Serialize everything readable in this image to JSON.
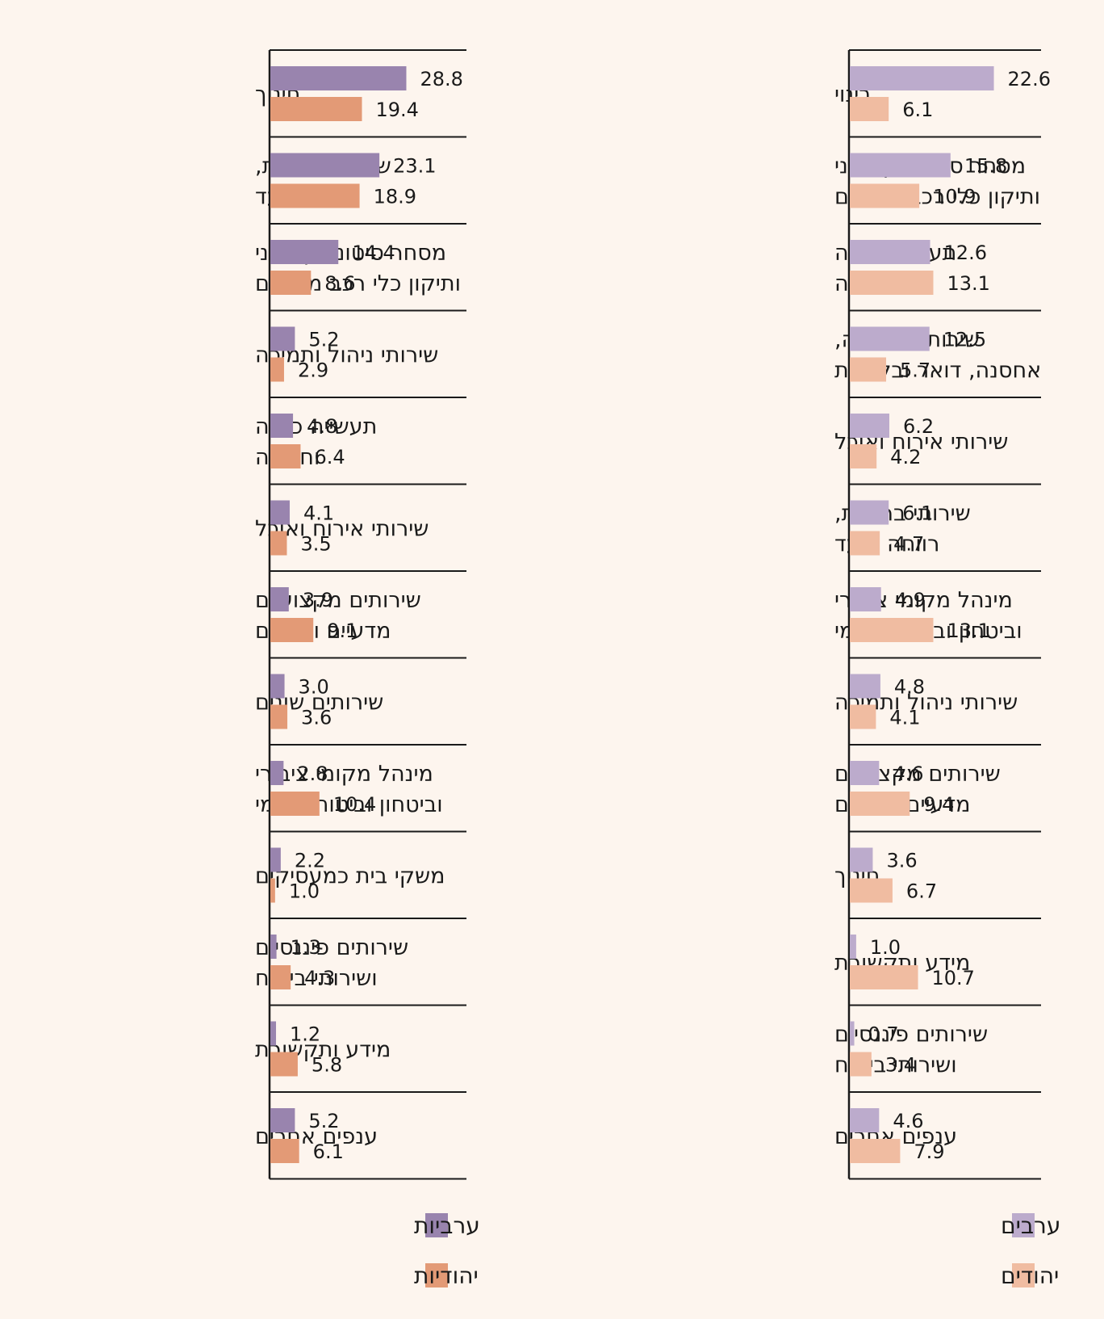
{
  "colors": {
    "background": "#fdf5ee",
    "women_arab": "#9984ae",
    "women_jewish": "#e39a76",
    "men_arab": "#bcabcc",
    "men_jewish": "#f0bca1"
  },
  "chart_data": [
    {
      "type": "bar",
      "orientation": "horizontal",
      "series": [
        {
          "name": "ערביות",
          "color": "#9984ae",
          "values": [
            28.8,
            23.1,
            14.4,
            5.2,
            4.8,
            4.1,
            3.9,
            3.0,
            2.8,
            2.2,
            1.3,
            1.2,
            5.2
          ]
        },
        {
          "name": "יהודיות",
          "color": "#e39a76",
          "values": [
            19.4,
            18.9,
            8.6,
            2.9,
            6.4,
            3.5,
            9.1,
            3.6,
            10.4,
            1.0,
            4.3,
            5.8,
            6.1
          ]
        }
      ],
      "categories": [
        [
          "חינוך"
        ],
        [
          "שירותי בריאות,",
          "רווחה וסעד"
        ],
        [
          "מסחר סיטוני וקמעוני",
          "ותיקון כלי רכב מנועיים"
        ],
        [
          "שירותי ניהול ותמיכה"
        ],
        [
          "תעשייה כרייה",
          "וחציבה"
        ],
        [
          "שירותי אירוח ואוכל"
        ],
        [
          "שירותים מקצועיים",
          "מדעיים וטכניים"
        ],
        [
          "שירותים שונים"
        ],
        [
          "מינהל מקומי ציבורי",
          "וביטחון  וביטוח לאומי"
        ],
        [
          "משקי בית כמעסיקים"
        ],
        [
          "שירותים פיננסיים",
          "ושירותי ביטוח"
        ],
        [
          "מידע ותקשורת"
        ],
        [
          "ענפים אחרים"
        ]
      ],
      "value_labels": [
        [
          "28.8",
          "23.1",
          "14.4",
          "5.2",
          "4.8",
          "4.1",
          "3.9",
          "3.0",
          "2.8",
          "2.2",
          "1.3",
          "1.2",
          "5.2"
        ],
        [
          "19.4",
          "18.9",
          "8.6",
          "2.9",
          "6.4",
          "3.5",
          "9.1",
          "3.6",
          "10.4",
          "1.0",
          "4.3",
          "5.8",
          "6.1"
        ]
      ],
      "legend": [
        "ערביות",
        "יהודיות"
      ],
      "legend_position": "bottom"
    },
    {
      "type": "bar",
      "orientation": "horizontal",
      "series": [
        {
          "name": "ערבים",
          "color": "#bcabcc",
          "values": [
            22.6,
            15.8,
            12.6,
            12.5,
            6.2,
            6.1,
            4.9,
            4.8,
            4.6,
            3.6,
            1.0,
            0.7,
            4.6
          ]
        },
        {
          "name": "יהודים",
          "color": "#f0bca1",
          "values": [
            6.1,
            10.9,
            13.1,
            5.7,
            4.2,
            4.7,
            13.1,
            4.1,
            9.4,
            6.7,
            10.7,
            3.4,
            7.9
          ]
        }
      ],
      "categories": [
        [
          "בינוי"
        ],
        [
          "מסחר סיטוני וקמעוני",
          "ותיקון כלי רכב מנועיים"
        ],
        [
          "תעשייה כרייה",
          "וחציבה"
        ],
        [
          "שירותי תחבורה,",
          "אחסנה, דואר ובלדרות"
        ],
        [
          "שירותי אירוח ואוכל"
        ],
        [
          "שירותי בריאות,",
          "רווחה וסעד"
        ],
        [
          "מינהל מקומי ציבורי",
          "וביטחון  וביטוח לאומי"
        ],
        [
          "שירותי ניהול ותמיכה"
        ],
        [
          "שירותים מקצועיים",
          "מדעיים וטכניים"
        ],
        [
          "חינוך"
        ],
        [
          "מידע ותקשורת"
        ],
        [
          "שירותים פיננסיים",
          "ושירותי ביטוח"
        ],
        [
          "ענפים אחרים"
        ]
      ],
      "value_labels": [
        [
          "22.6",
          "15.8",
          "12.6",
          "12.5",
          "6.2",
          "6.1",
          "4.9",
          "4.8",
          "4.6",
          "3.6",
          "1.0",
          "0.7",
          "4.6"
        ],
        [
          "6.1",
          "10.9",
          "13.1",
          "5.7",
          "4.2",
          "4.7",
          "13.1",
          "4.1",
          "9.4",
          "6.7",
          "10.7",
          "3.4",
          "7.9"
        ]
      ],
      "legend": [
        "ערבים",
        "יהודים"
      ],
      "legend_position": "bottom"
    }
  ]
}
